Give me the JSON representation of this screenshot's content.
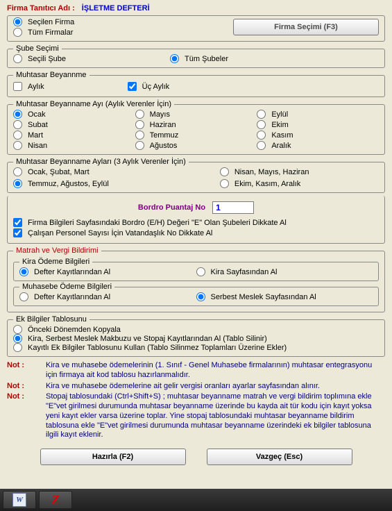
{
  "header": {
    "label": "Firma Tanıtıcı Adı :",
    "value": "İŞLETME  DEFTERİ"
  },
  "firmGroup": {
    "opt_selected": "Seçilen Firma",
    "opt_all": "Tüm Firmalar",
    "btn": "Firma Seçimi (F3)"
  },
  "sube": {
    "legend": "Şube Seçimi",
    "opt_secili": "Seçili Şube",
    "opt_tum": "Tüm Şubeler"
  },
  "muhtasar_period": {
    "legend": "Muhtasar Beyannme",
    "chk_month": "Aylık",
    "chk_quarter": "Üç Aylık"
  },
  "months": {
    "legend": "Muhtasar Beyanname Ayı (Aylık Verenler İçin)",
    "m1": "Ocak",
    "m2": "Subat",
    "m3": "Mart",
    "m4": "Nisan",
    "m5": "Mayıs",
    "m6": "Haziran",
    "m7": "Temmuz",
    "m8": "Ağustos",
    "m9": "Eylül",
    "m10": "Ekim",
    "m11": "Kasım",
    "m12": "Aralık"
  },
  "quarters": {
    "legend": "Muhtasar  Beyanname Ayları (3 Aylık Verenler İçin)",
    "q1": "Ocak, Şubat, Mart",
    "q2": "Nisan, Mayıs, Haziran",
    "q3": "Temmuz, Ağustos, Eylül",
    "q4": "Ekim, Kasım, Aralık"
  },
  "bordro": {
    "label": "Bordro Puantaj No",
    "value": "1"
  },
  "checks": {
    "c1": "Firma Bilgileri Sayfasındaki Bordro (E/H) Değeri \"E\" Olan Şubeleri Dikkate Al",
    "c2": "Çalışan Personel Sayısı İçin Vatandaşlık No Dikkate Al"
  },
  "matrah": {
    "legend": "Matrah ve Vergi Bildirimi",
    "kira_legend": "Kira Ödeme Bilgileri",
    "kira_a": "Defter Kayıtlarından Al",
    "kira_b": "Kira Sayfasından Al",
    "muh_legend": "Muhasebe Ödeme Bilgileri",
    "muh_a": "Defter Kayıtlarından Al",
    "muh_b": "Serbest Meslek Sayfasından Al"
  },
  "ek": {
    "legend": "Ek Bilgiler Tablosunu",
    "o1": "Önceki Dönemden Kopyala",
    "o2": "Kira, Serbest Meslek Makbuzu ve Stopaj Kayıtlarından Al (Tablo Silinir)",
    "o3": "Kayıtlı Ek Bilgiler Tablosunu Kullan (Tablo Silinmez Toplamları Üzerine Ekler)"
  },
  "notes": {
    "label": "Not :",
    "n1": "Kira ve muhasebe ödemelerinin (1. Sınıf - Genel Muhasebe firmalarının) muhtasar entegrasyonu için firmaya ait kod tablosu hazırlanmalıdır.",
    "n2": "Kira ve muhasebe ödemelerine ait gelir vergisi oranları ayarlar sayfasından alınır.",
    "n3": "Stopaj tablosundaki (Ctrl+Shift+S) ; muhtasar beyanname matrah ve vergi bildirim toplımına ekle \"E\"vet girilmesi durumunda muhtasar beyanname üzerinde bu kayda ait tür kodu için kayıt yoksa yeni kayıt ekler varsa üzerine toplar. Yine stopaj tablosundaki muhtasar beyanname bildirim tablosuna ekle \"E\"vet girilmesi durumunda muhtasar beyanname üzerindeki ek bilgiler tablosuna ilgili kayıt eklenir."
  },
  "buttons": {
    "ok": "Hazırla (F2)",
    "cancel": "Vazgeç (Esc)"
  }
}
